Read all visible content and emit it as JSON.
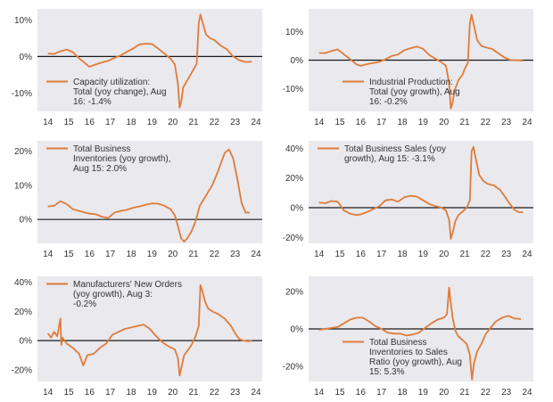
{
  "colors": {
    "series": "#E07B39",
    "panel_bg": "#E9E9EE",
    "zero_line": "#1a1a1a"
  },
  "chart_data": [
    {
      "type": "line",
      "legend": [
        "Capacity utilization:",
        "Total (yoy change), Aug",
        "16: -1.4%"
      ],
      "legend_position": "bottom-left",
      "x_ticks": [
        "14",
        "15",
        "16",
        "17",
        "18",
        "19",
        "20",
        "21",
        "22",
        "23",
        "24"
      ],
      "y_ticks": [
        "10%",
        "0%",
        "-10%"
      ],
      "y_tick_values": [
        10,
        0,
        -10
      ],
      "ylim": [
        -15,
        13
      ],
      "xlim": [
        2013.5,
        2024.3
      ],
      "series": [
        {
          "x": [
            2014.0,
            2014.3,
            2014.6,
            2014.9,
            2015.2,
            2015.5,
            2015.8,
            2016.0,
            2016.3,
            2016.6,
            2016.9,
            2017.2,
            2017.5,
            2017.8,
            2018.1,
            2018.4,
            2018.7,
            2019.0,
            2019.3,
            2019.6,
            2019.9,
            2020.1,
            2020.25,
            2020.33,
            2020.42,
            2020.5,
            2020.7,
            2020.9,
            2021.0,
            2021.15,
            2021.25,
            2021.33,
            2021.45,
            2021.6,
            2021.8,
            2022.0,
            2022.3,
            2022.6,
            2022.9,
            2023.2,
            2023.5,
            2023.8
          ],
          "y": [
            0.8,
            0.7,
            1.4,
            1.9,
            1.2,
            -0.5,
            -1.9,
            -2.8,
            -2.2,
            -1.6,
            -1.2,
            -0.4,
            0.3,
            1.3,
            2.2,
            3.3,
            3.5,
            3.4,
            2.2,
            0.8,
            -0.6,
            -2.2,
            -7.5,
            -14.0,
            -12.0,
            -8.5,
            -6.5,
            -4.5,
            -3.5,
            -2.0,
            9.0,
            11.5,
            9.0,
            6.0,
            5.0,
            4.5,
            3.0,
            2.0,
            0.0,
            -1.0,
            -1.5,
            -1.4
          ]
        }
      ]
    },
    {
      "type": "line",
      "legend": [
        "Industrial Production:",
        "Total (yoy growth), Aug",
        "16: -0.2%"
      ],
      "legend_position": "bottom-right",
      "x_ticks": [
        "14",
        "15",
        "16",
        "17",
        "18",
        "19",
        "20",
        "21",
        "22",
        "23",
        "24"
      ],
      "y_ticks": [
        "10%",
        "0%",
        "-10%"
      ],
      "y_tick_values": [
        10,
        0,
        -10
      ],
      "ylim": [
        -18,
        18
      ],
      "xlim": [
        2013.5,
        2024.3
      ],
      "series": [
        {
          "x": [
            2014.0,
            2014.3,
            2014.6,
            2014.9,
            2015.2,
            2015.5,
            2015.8,
            2016.0,
            2016.3,
            2016.6,
            2016.9,
            2017.2,
            2017.5,
            2017.8,
            2018.1,
            2018.4,
            2018.7,
            2019.0,
            2019.3,
            2019.6,
            2019.9,
            2020.1,
            2020.25,
            2020.33,
            2020.42,
            2020.5,
            2020.7,
            2020.9,
            2021.0,
            2021.15,
            2021.25,
            2021.33,
            2021.45,
            2021.6,
            2021.8,
            2022.0,
            2022.3,
            2022.6,
            2022.9,
            2023.2,
            2023.5,
            2023.8
          ],
          "y": [
            2.5,
            2.5,
            3.2,
            3.8,
            2.0,
            0.3,
            -1.5,
            -2.0,
            -1.4,
            -1.0,
            -0.6,
            0.3,
            1.5,
            2.0,
            3.5,
            4.2,
            4.8,
            4.0,
            1.8,
            0.5,
            -0.8,
            -2.0,
            -8.0,
            -17.0,
            -15.0,
            -11.0,
            -7.0,
            -5.0,
            -3.0,
            -1.0,
            13.0,
            16.0,
            12.0,
            7.0,
            5.0,
            4.5,
            4.0,
            2.5,
            1.0,
            0.0,
            0.0,
            -0.2
          ]
        }
      ]
    },
    {
      "type": "line",
      "legend": [
        "Total Business",
        "Inventories (yoy growth),",
        "Aug 15: 2.0%"
      ],
      "legend_position": "top-left",
      "x_ticks": [
        "14",
        "15",
        "16",
        "17",
        "18",
        "19",
        "20",
        "21",
        "22",
        "23",
        "24"
      ],
      "y_ticks": [
        "20%",
        "10%",
        "0%"
      ],
      "y_tick_values": [
        20,
        10,
        0
      ],
      "ylim": [
        -7,
        23
      ],
      "xlim": [
        2013.5,
        2024.3
      ],
      "series": [
        {
          "x": [
            2014.0,
            2014.3,
            2014.6,
            2014.9,
            2015.2,
            2015.5,
            2015.8,
            2016.0,
            2016.3,
            2016.6,
            2016.9,
            2017.2,
            2017.5,
            2017.8,
            2018.1,
            2018.4,
            2018.7,
            2019.0,
            2019.3,
            2019.6,
            2019.9,
            2020.1,
            2020.25,
            2020.4,
            2020.55,
            2020.7,
            2020.9,
            2021.1,
            2021.3,
            2021.6,
            2021.9,
            2022.2,
            2022.5,
            2022.7,
            2022.9,
            2023.1,
            2023.3,
            2023.5,
            2023.7
          ],
          "y": [
            3.8,
            4.0,
            5.3,
            4.5,
            3.0,
            2.5,
            2.0,
            1.7,
            1.5,
            0.8,
            0.4,
            2.0,
            2.5,
            2.8,
            3.4,
            3.8,
            4.3,
            4.7,
            4.6,
            4.0,
            3.0,
            1.2,
            -2.0,
            -5.5,
            -6.5,
            -5.5,
            -3.5,
            -0.5,
            4.0,
            7.0,
            10.0,
            14.5,
            19.5,
            20.5,
            18.0,
            12.0,
            5.0,
            2.0,
            2.0
          ]
        }
      ]
    },
    {
      "type": "line",
      "legend": [
        "Total Business Sales (yoy",
        "growth), Aug 15: -3.1%"
      ],
      "legend_position": "top-left",
      "x_ticks": [
        "14",
        "15",
        "16",
        "17",
        "18",
        "19",
        "20",
        "21",
        "22",
        "23",
        "24"
      ],
      "y_ticks": [
        "40%",
        "20%",
        "0%",
        "-20%"
      ],
      "y_tick_values": [
        40,
        20,
        0,
        -20
      ],
      "ylim": [
        -24,
        45
      ],
      "xlim": [
        2013.5,
        2024.3
      ],
      "series": [
        {
          "x": [
            2014.0,
            2014.3,
            2014.6,
            2014.9,
            2015.2,
            2015.5,
            2015.8,
            2016.0,
            2016.3,
            2016.6,
            2016.9,
            2017.2,
            2017.5,
            2017.8,
            2018.1,
            2018.4,
            2018.7,
            2019.0,
            2019.3,
            2019.6,
            2019.9,
            2020.1,
            2020.25,
            2020.33,
            2020.42,
            2020.55,
            2020.7,
            2020.9,
            2021.1,
            2021.25,
            2021.33,
            2021.42,
            2021.55,
            2021.7,
            2021.9,
            2022.1,
            2022.4,
            2022.7,
            2023.0,
            2023.2,
            2023.4,
            2023.6,
            2023.8
          ],
          "y": [
            3.5,
            3.0,
            4.5,
            4.0,
            -2.0,
            -4.0,
            -5.0,
            -4.5,
            -3.0,
            -1.0,
            1.0,
            5.0,
            5.5,
            4.0,
            7.0,
            8.0,
            7.5,
            5.0,
            2.5,
            1.0,
            0.0,
            -2.0,
            -8.0,
            -21.0,
            -17.0,
            -9.0,
            -5.0,
            -2.5,
            0.0,
            5.0,
            38.0,
            41.0,
            32.0,
            22.0,
            18.0,
            16.0,
            15.0,
            12.0,
            6.0,
            2.0,
            -1.5,
            -3.0,
            -3.1
          ]
        }
      ]
    },
    {
      "type": "line",
      "legend": [
        "Manufacturers' New Orders",
        "(yoy growth), Aug 3:",
        "-0.2%"
      ],
      "legend_position": "top-left",
      "x_ticks": [
        "14",
        "15",
        "16",
        "17",
        "18",
        "19",
        "20",
        "21",
        "22",
        "23",
        "24"
      ],
      "y_ticks": [
        "40%",
        "20%",
        "0%",
        "-20%"
      ],
      "y_tick_values": [
        40,
        20,
        0,
        -20
      ],
      "ylim": [
        -28,
        44
      ],
      "xlim": [
        2013.5,
        2024.3
      ],
      "series": [
        {
          "x": [
            2014.0,
            2014.15,
            2014.3,
            2014.45,
            2014.6,
            2014.65,
            2014.7,
            2014.9,
            2015.2,
            2015.5,
            2015.7,
            2015.9,
            2016.2,
            2016.5,
            2016.8,
            2017.1,
            2017.4,
            2017.7,
            2018.0,
            2018.3,
            2018.6,
            2018.9,
            2019.2,
            2019.5,
            2019.8,
            2020.1,
            2020.25,
            2020.33,
            2020.42,
            2020.55,
            2020.7,
            2020.9,
            2021.1,
            2021.25,
            2021.33,
            2021.42,
            2021.55,
            2021.7,
            2021.9,
            2022.2,
            2022.5,
            2022.8,
            2023.0,
            2023.2,
            2023.4,
            2023.6,
            2023.8
          ],
          "y": [
            5.0,
            2.0,
            6.0,
            3.0,
            15.0,
            -3.0,
            2.0,
            -2.0,
            -5.0,
            -9.0,
            -17.0,
            -10.0,
            -9.0,
            -5.0,
            -2.0,
            4.0,
            6.0,
            8.0,
            9.0,
            10.0,
            11.0,
            8.0,
            3.0,
            -1.0,
            -4.0,
            -6.0,
            -12.0,
            -24.0,
            -18.0,
            -10.0,
            -7.0,
            -3.0,
            3.0,
            10.0,
            38.0,
            34.0,
            27.0,
            22.0,
            20.0,
            18.0,
            15.0,
            10.0,
            5.0,
            1.0,
            0.0,
            -0.5,
            -0.2
          ]
        }
      ]
    },
    {
      "type": "line",
      "legend": [
        "Total Business",
        "Inventories to Sales",
        "Ratio (yoy growth), Aug",
        "15: 5.3%"
      ],
      "legend_position": "bottom-right",
      "x_ticks": [
        "14",
        "15",
        "16",
        "17",
        "18",
        "19",
        "20",
        "21",
        "22",
        "23",
        "24"
      ],
      "y_ticks": [
        "20%",
        "0%",
        "-20%"
      ],
      "y_tick_values": [
        20,
        0,
        -20
      ],
      "ylim": [
        -28,
        28
      ],
      "xlim": [
        2013.5,
        2024.3
      ],
      "series": [
        {
          "x": [
            2014.0,
            2014.3,
            2014.6,
            2014.9,
            2015.2,
            2015.5,
            2015.8,
            2016.1,
            2016.4,
            2016.7,
            2017.0,
            2017.3,
            2017.6,
            2017.9,
            2018.2,
            2018.5,
            2018.8,
            2019.1,
            2019.4,
            2019.7,
            2020.0,
            2020.15,
            2020.25,
            2020.33,
            2020.42,
            2020.55,
            2020.7,
            2020.9,
            2021.1,
            2021.25,
            2021.35,
            2021.45,
            2021.6,
            2021.8,
            2022.0,
            2022.2,
            2022.5,
            2022.8,
            2023.1,
            2023.4,
            2023.7
          ],
          "y": [
            -0.5,
            0.0,
            0.5,
            1.0,
            3.0,
            5.0,
            6.0,
            6.0,
            4.0,
            1.5,
            0.0,
            -2.0,
            -2.5,
            -2.5,
            -3.5,
            -3.0,
            -2.0,
            0.5,
            3.0,
            5.0,
            6.0,
            8.0,
            22.0,
            14.0,
            6.0,
            -1.0,
            -4.0,
            -6.0,
            -8.0,
            -14.0,
            -27.0,
            -18.0,
            -12.0,
            -8.0,
            -3.0,
            0.0,
            4.0,
            6.0,
            7.0,
            5.5,
            5.3
          ]
        }
      ]
    }
  ]
}
